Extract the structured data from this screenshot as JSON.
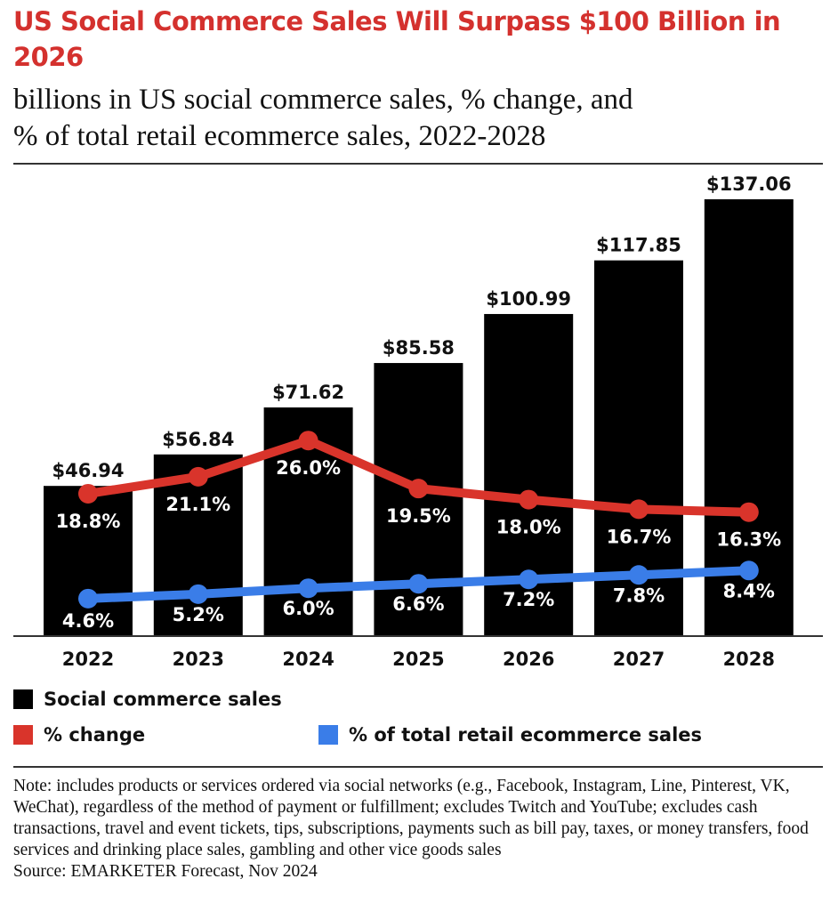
{
  "title": "US Social Commerce Sales Will Surpass $100 Billion in 2026",
  "subtitle_line1": "billions in US social commerce sales, % change, and",
  "subtitle_line2": "% of total retail ecommerce sales, 2022-2028",
  "chart_data": {
    "type": "bar",
    "categories": [
      "2022",
      "2023",
      "2024",
      "2025",
      "2026",
      "2027",
      "2028"
    ],
    "series": [
      {
        "name": "Social commerce sales",
        "type": "bar",
        "color": "#000000",
        "values": [
          46.94,
          56.84,
          71.62,
          85.58,
          100.99,
          117.85,
          137.06
        ],
        "labels": [
          "$46.94",
          "$56.84",
          "$71.62",
          "$85.58",
          "$100.99",
          "$117.85",
          "$137.06"
        ]
      },
      {
        "name": "% change",
        "type": "line",
        "color": "#d9342b",
        "values": [
          18.8,
          21.1,
          26.0,
          19.5,
          18.0,
          16.7,
          16.3
        ],
        "labels": [
          "18.8%",
          "21.1%",
          "26.0%",
          "19.5%",
          "18.0%",
          "16.7%",
          "16.3%"
        ]
      },
      {
        "name": "% of total retail ecommerce sales",
        "type": "line",
        "color": "#3a7de8",
        "values": [
          4.6,
          5.2,
          6.0,
          6.6,
          7.2,
          7.8,
          8.4
        ],
        "labels": [
          "4.6%",
          "5.2%",
          "6.0%",
          "6.6%",
          "7.2%",
          "7.8%",
          "8.4%"
        ]
      }
    ],
    "grid": false,
    "legend_placement": "bottom-left"
  },
  "note": "Note: includes products or services ordered via social networks (e.g., Facebook, Instagram, Line, Pinterest, VK, WeChat), regardless of the method of payment or fulfillment; excludes Twitch and YouTube; excludes cash transactions, travel and event tickets, tips, subscriptions, payments such as bill pay, taxes, or money transfers, food services and drinking place sales, gambling and other vice goods sales",
  "source": "Source: EMARKETER Forecast, Nov 2024"
}
